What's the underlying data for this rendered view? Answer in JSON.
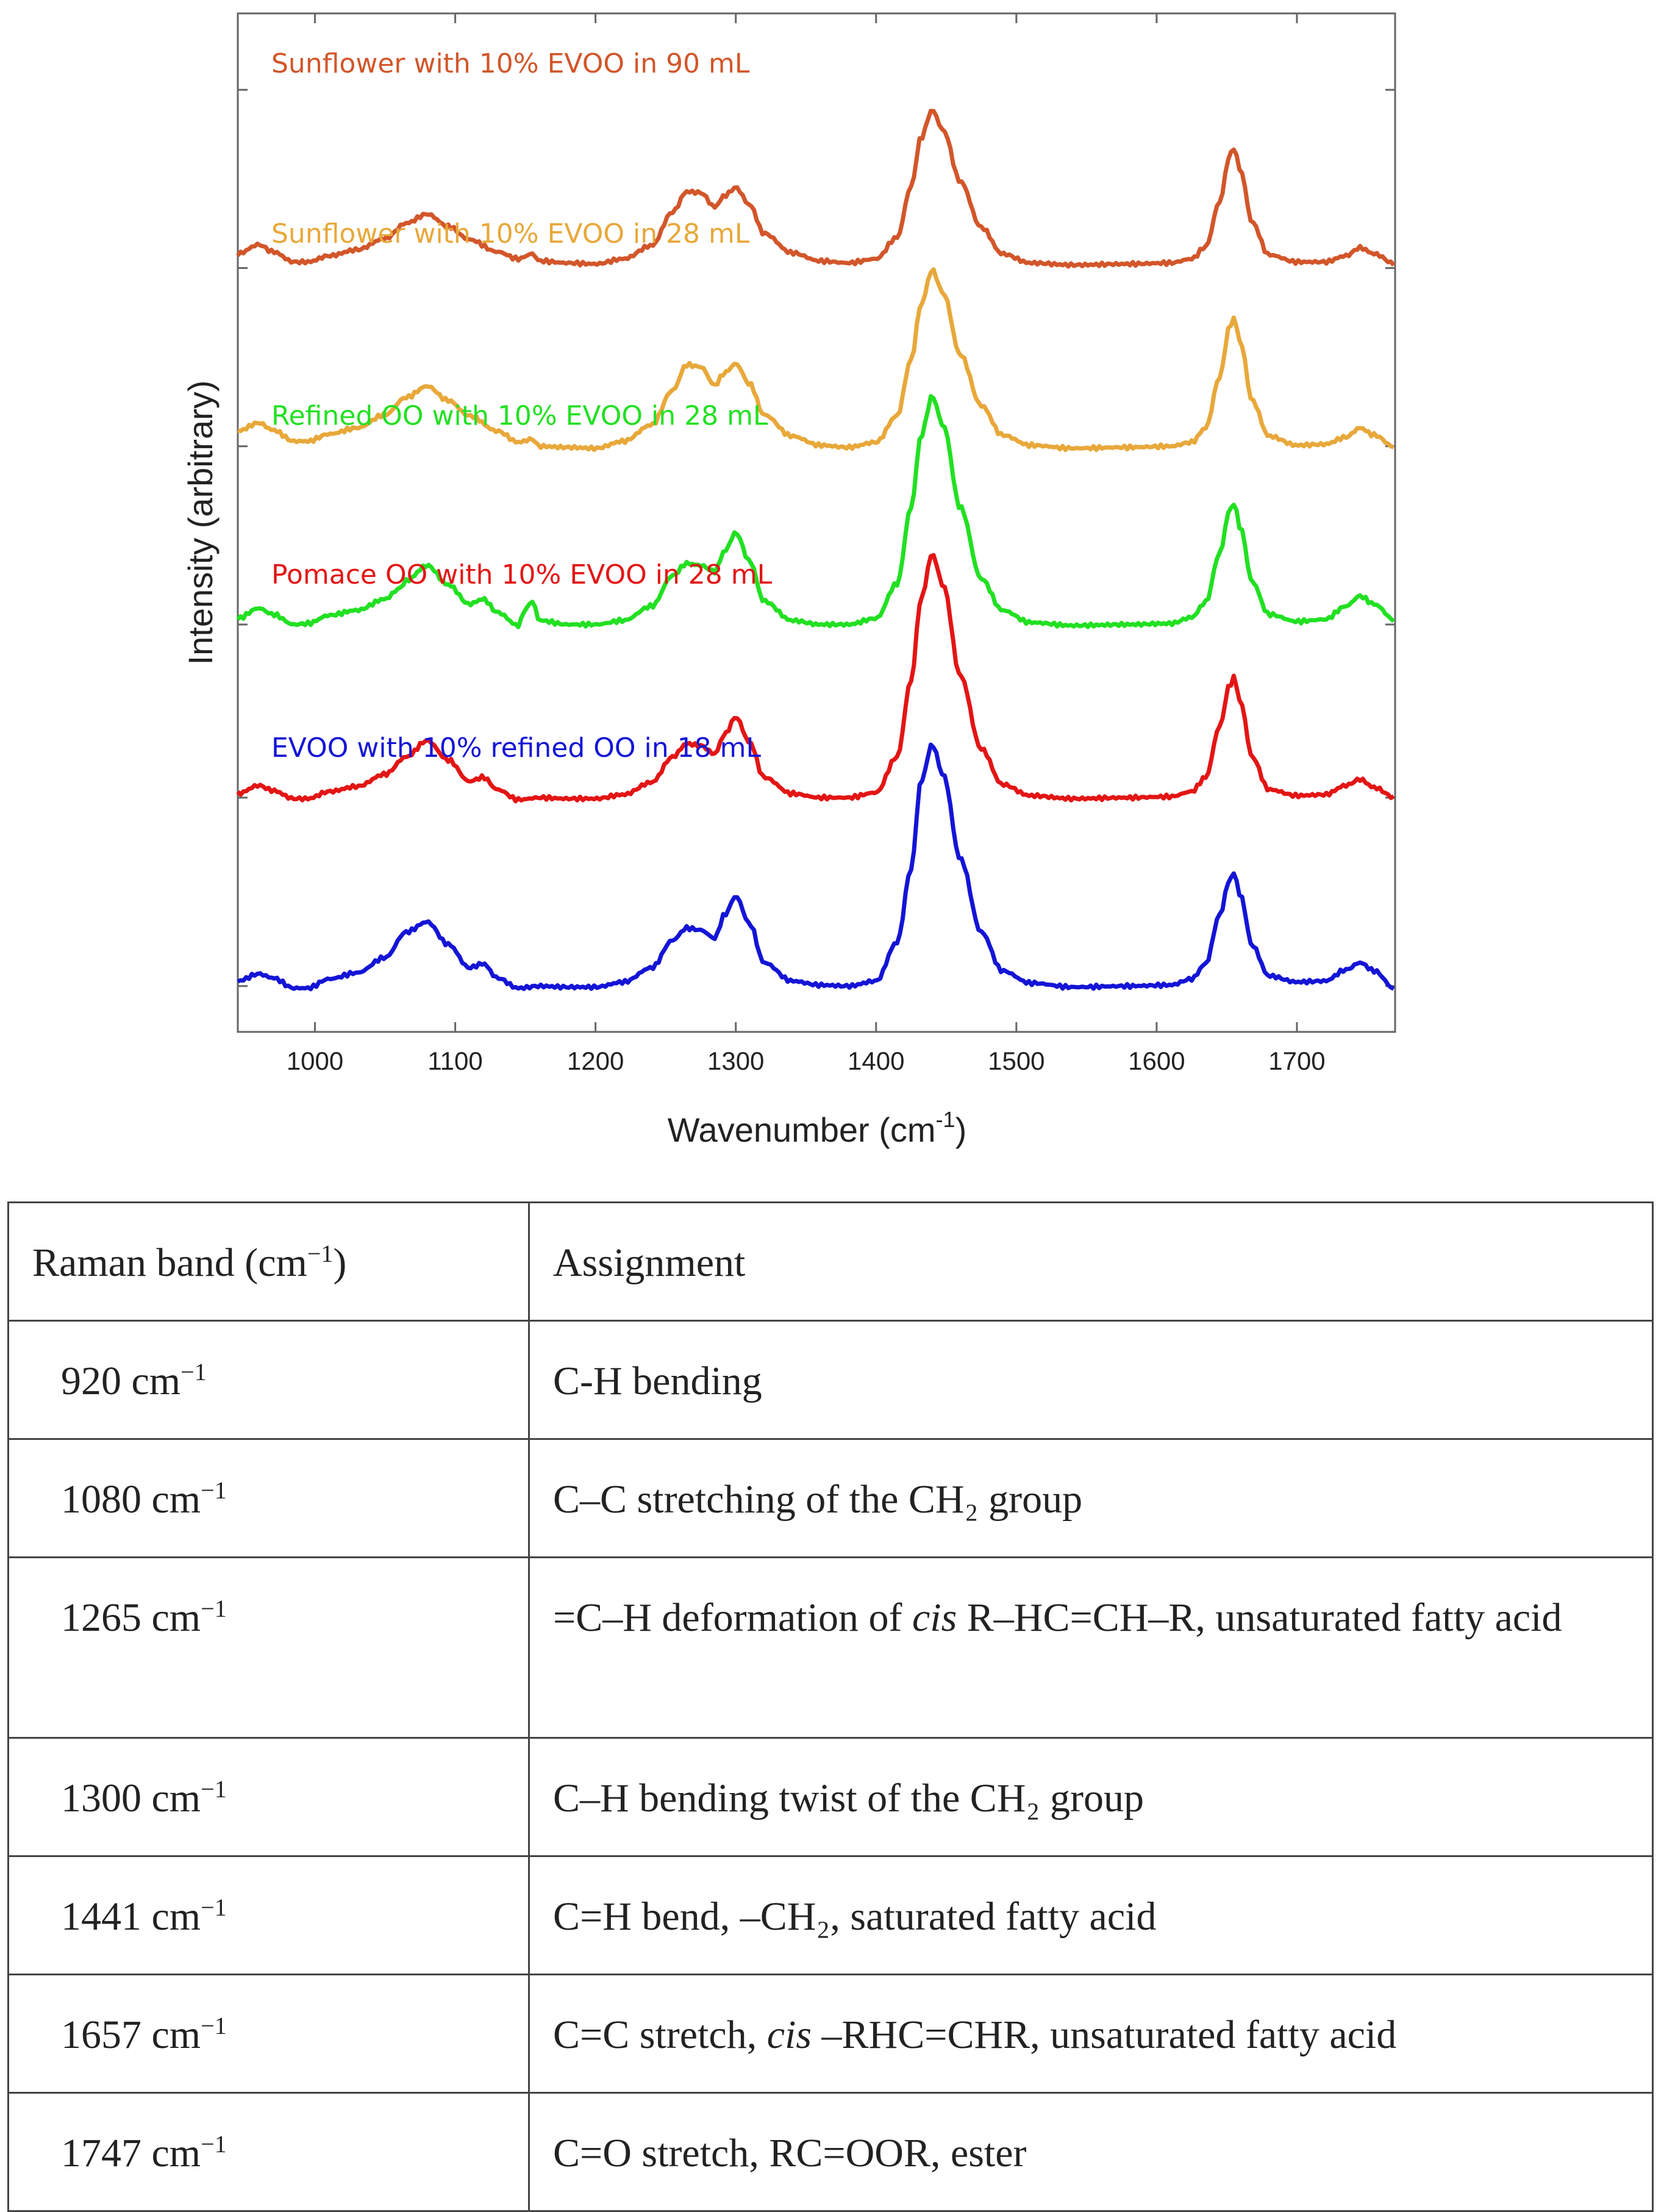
{
  "chart_data": {
    "type": "line",
    "title": "",
    "xlabel": "Wavenumber (cm",
    "xlabel_sup": "-1",
    "xlabel_end": ")",
    "ylabel": "Intensity (arbitrary)",
    "xlim": [
      945,
      1770
    ],
    "ylim": [
      0,
      100
    ],
    "x_ticks": [
      1000,
      1100,
      1200,
      1300,
      1400,
      1500,
      1600,
      1700
    ],
    "x_tick_labels": [
      "1000",
      "1100",
      "1200",
      "1300",
      "1400",
      "1500",
      "1600",
      "1700"
    ],
    "y_ticks": [
      4.5,
      23,
      40,
      57.5,
      75,
      92.5
    ],
    "y_tick_labels": [
      "",
      "",
      "",
      "",
      "",
      ""
    ],
    "series": [
      {
        "name": "Sunflower with 10% EVOO in 90 mL",
        "color": "#D2562A",
        "baseline": 75,
        "pt": [
          [
            945,
            76.4
          ],
          [
            960,
            77.3
          ],
          [
            970,
            76.6
          ],
          [
            985,
            75.6
          ],
          [
            995,
            75.6
          ],
          [
            1010,
            76.2
          ],
          [
            1030,
            76.8
          ],
          [
            1050,
            77.9
          ],
          [
            1065,
            79.4
          ],
          [
            1080,
            80.3
          ],
          [
            1095,
            79.1
          ],
          [
            1110,
            77.8
          ],
          [
            1130,
            76.6
          ],
          [
            1145,
            75.9
          ],
          [
            1155,
            76.4
          ],
          [
            1160,
            75.7
          ],
          [
            1180,
            75.5
          ],
          [
            1200,
            75.4
          ],
          [
            1220,
            75.9
          ],
          [
            1240,
            77.2
          ],
          [
            1255,
            80.5
          ],
          [
            1265,
            82.5
          ],
          [
            1275,
            82.4
          ],
          [
            1285,
            81.0
          ],
          [
            1292,
            82.1
          ],
          [
            1300,
            82.9
          ],
          [
            1310,
            81.2
          ],
          [
            1320,
            78.4
          ],
          [
            1340,
            76.5
          ],
          [
            1360,
            75.7
          ],
          [
            1380,
            75.5
          ],
          [
            1400,
            75.9
          ],
          [
            1415,
            78.0
          ],
          [
            1425,
            83.0
          ],
          [
            1432,
            87.8
          ],
          [
            1440,
            90.5
          ],
          [
            1448,
            88.5
          ],
          [
            1460,
            83.5
          ],
          [
            1475,
            79.0
          ],
          [
            1490,
            76.4
          ],
          [
            1510,
            75.5
          ],
          [
            1540,
            75.3
          ],
          [
            1580,
            75.4
          ],
          [
            1610,
            75.5
          ],
          [
            1625,
            75.9
          ],
          [
            1635,
            77.1
          ],
          [
            1645,
            81.5
          ],
          [
            1652,
            86.0
          ],
          [
            1655,
            86.8
          ],
          [
            1660,
            84.5
          ],
          [
            1668,
            79.5
          ],
          [
            1680,
            76.3
          ],
          [
            1700,
            75.6
          ],
          [
            1720,
            75.6
          ],
          [
            1735,
            76.2
          ],
          [
            1745,
            77.0
          ],
          [
            1755,
            76.4
          ],
          [
            1770,
            75.4
          ]
        ]
      },
      {
        "name": "Sunflower with 10% EVOO in 28 mL",
        "color": "#E8A83A",
        "baseline": 57.5,
        "pt": [
          [
            945,
            59.0
          ],
          [
            960,
            59.8
          ],
          [
            970,
            59.1
          ],
          [
            985,
            58.0
          ],
          [
            995,
            58.0
          ],
          [
            1010,
            58.7
          ],
          [
            1030,
            59.3
          ],
          [
            1050,
            60.6
          ],
          [
            1065,
            62.3
          ],
          [
            1080,
            63.4
          ],
          [
            1095,
            62.0
          ],
          [
            1110,
            60.5
          ],
          [
            1130,
            59.0
          ],
          [
            1145,
            57.9
          ],
          [
            1155,
            58.2
          ],
          [
            1160,
            57.5
          ],
          [
            1180,
            57.4
          ],
          [
            1200,
            57.3
          ],
          [
            1220,
            58.0
          ],
          [
            1240,
            59.6
          ],
          [
            1255,
            63.0
          ],
          [
            1265,
            65.5
          ],
          [
            1275,
            65.3
          ],
          [
            1285,
            63.5
          ],
          [
            1292,
            64.7
          ],
          [
            1300,
            65.6
          ],
          [
            1310,
            63.6
          ],
          [
            1320,
            60.6
          ],
          [
            1340,
            58.5
          ],
          [
            1360,
            57.6
          ],
          [
            1380,
            57.4
          ],
          [
            1400,
            57.9
          ],
          [
            1415,
            60.5
          ],
          [
            1425,
            66.0
          ],
          [
            1432,
            71.4
          ],
          [
            1440,
            74.8
          ],
          [
            1448,
            72.5
          ],
          [
            1460,
            66.5
          ],
          [
            1475,
            61.5
          ],
          [
            1490,
            58.6
          ],
          [
            1510,
            57.6
          ],
          [
            1540,
            57.3
          ],
          [
            1580,
            57.4
          ],
          [
            1610,
            57.5
          ],
          [
            1625,
            57.9
          ],
          [
            1635,
            59.3
          ],
          [
            1645,
            64.3
          ],
          [
            1652,
            69.2
          ],
          [
            1655,
            70.1
          ],
          [
            1660,
            67.6
          ],
          [
            1668,
            62.0
          ],
          [
            1680,
            58.5
          ],
          [
            1700,
            57.6
          ],
          [
            1720,
            57.7
          ],
          [
            1735,
            58.4
          ],
          [
            1745,
            59.3
          ],
          [
            1755,
            58.6
          ],
          [
            1770,
            57.4
          ]
        ]
      },
      {
        "name": "Refined OO with 10% EVOO in 28 mL",
        "color": "#22E022",
        "baseline": 40,
        "pt": [
          [
            945,
            40.6
          ],
          [
            960,
            41.6
          ],
          [
            970,
            41.0
          ],
          [
            985,
            40.0
          ],
          [
            995,
            40.1
          ],
          [
            1010,
            40.9
          ],
          [
            1030,
            41.4
          ],
          [
            1050,
            42.5
          ],
          [
            1060,
            43.5
          ],
          [
            1065,
            44.3
          ],
          [
            1080,
            45.8
          ],
          [
            1095,
            43.9
          ],
          [
            1110,
            42.0
          ],
          [
            1120,
            42.5
          ],
          [
            1130,
            41.2
          ],
          [
            1145,
            39.9
          ],
          [
            1150,
            41.5
          ],
          [
            1155,
            42.3
          ],
          [
            1160,
            40.4
          ],
          [
            1180,
            40.0
          ],
          [
            1200,
            40.0
          ],
          [
            1220,
            40.4
          ],
          [
            1240,
            41.8
          ],
          [
            1255,
            44.8
          ],
          [
            1265,
            46.0
          ],
          [
            1275,
            45.8
          ],
          [
            1285,
            45.2
          ],
          [
            1292,
            47.2
          ],
          [
            1300,
            49.0
          ],
          [
            1310,
            46.2
          ],
          [
            1320,
            42.3
          ],
          [
            1340,
            40.4
          ],
          [
            1360,
            40.0
          ],
          [
            1380,
            40.0
          ],
          [
            1400,
            40.6
          ],
          [
            1415,
            44.0
          ],
          [
            1425,
            51.5
          ],
          [
            1432,
            58.5
          ],
          [
            1440,
            62.4
          ],
          [
            1448,
            59.5
          ],
          [
            1460,
            51.5
          ],
          [
            1475,
            44.5
          ],
          [
            1490,
            41.4
          ],
          [
            1510,
            40.2
          ],
          [
            1540,
            39.9
          ],
          [
            1580,
            40.0
          ],
          [
            1610,
            40.1
          ],
          [
            1625,
            40.7
          ],
          [
            1635,
            42.2
          ],
          [
            1645,
            47.0
          ],
          [
            1652,
            51.2
          ],
          [
            1655,
            51.9
          ],
          [
            1660,
            49.4
          ],
          [
            1668,
            44.2
          ],
          [
            1680,
            41.0
          ],
          [
            1700,
            40.3
          ],
          [
            1720,
            40.5
          ],
          [
            1735,
            41.8
          ],
          [
            1745,
            42.8
          ],
          [
            1755,
            42.0
          ],
          [
            1770,
            40.4
          ]
        ]
      },
      {
        "name": "Pomace OO with 10% EVOO in 28 mL",
        "color": "#E31515",
        "baseline": 23,
        "pt": [
          [
            945,
            23.4
          ],
          [
            960,
            24.2
          ],
          [
            970,
            23.7
          ],
          [
            985,
            22.9
          ],
          [
            995,
            22.9
          ],
          [
            1010,
            23.6
          ],
          [
            1030,
            24.1
          ],
          [
            1050,
            25.3
          ],
          [
            1065,
            27.0
          ],
          [
            1080,
            28.6
          ],
          [
            1095,
            26.7
          ],
          [
            1110,
            24.6
          ],
          [
            1120,
            25.0
          ],
          [
            1130,
            23.8
          ],
          [
            1145,
            22.8
          ],
          [
            1160,
            23.0
          ],
          [
            1180,
            22.9
          ],
          [
            1200,
            22.9
          ],
          [
            1220,
            23.3
          ],
          [
            1240,
            24.5
          ],
          [
            1255,
            27.0
          ],
          [
            1265,
            28.3
          ],
          [
            1275,
            28.1
          ],
          [
            1285,
            27.3
          ],
          [
            1292,
            29.2
          ],
          [
            1300,
            30.9
          ],
          [
            1310,
            28.4
          ],
          [
            1320,
            25.0
          ],
          [
            1340,
            23.4
          ],
          [
            1360,
            23.0
          ],
          [
            1380,
            23.0
          ],
          [
            1400,
            23.5
          ],
          [
            1415,
            27.0
          ],
          [
            1425,
            34.5
          ],
          [
            1432,
            42.5
          ],
          [
            1440,
            46.9
          ],
          [
            1448,
            43.8
          ],
          [
            1460,
            35.0
          ],
          [
            1475,
            27.8
          ],
          [
            1490,
            24.3
          ],
          [
            1510,
            23.2
          ],
          [
            1540,
            22.9
          ],
          [
            1580,
            23.0
          ],
          [
            1610,
            23.1
          ],
          [
            1625,
            23.6
          ],
          [
            1635,
            25.0
          ],
          [
            1645,
            30.0
          ],
          [
            1652,
            34.0
          ],
          [
            1655,
            34.8
          ],
          [
            1660,
            32.3
          ],
          [
            1668,
            27.0
          ],
          [
            1680,
            23.8
          ],
          [
            1700,
            23.2
          ],
          [
            1720,
            23.3
          ],
          [
            1735,
            24.2
          ],
          [
            1745,
            24.8
          ],
          [
            1755,
            24.0
          ],
          [
            1770,
            23.0
          ]
        ]
      },
      {
        "name": "EVOO with 10% refined OO in 18 mL",
        "color": "#1414D6",
        "baseline": 4.5,
        "pt": [
          [
            945,
            5.0
          ],
          [
            960,
            5.7
          ],
          [
            970,
            5.3
          ],
          [
            985,
            4.3
          ],
          [
            995,
            4.3
          ],
          [
            1010,
            5.2
          ],
          [
            1030,
            5.8
          ],
          [
            1050,
            7.3
          ],
          [
            1065,
            9.8
          ],
          [
            1080,
            10.8
          ],
          [
            1095,
            8.6
          ],
          [
            1110,
            6.3
          ],
          [
            1120,
            6.7
          ],
          [
            1130,
            5.3
          ],
          [
            1145,
            4.3
          ],
          [
            1160,
            4.5
          ],
          [
            1180,
            4.4
          ],
          [
            1200,
            4.4
          ],
          [
            1220,
            4.9
          ],
          [
            1240,
            6.3
          ],
          [
            1255,
            9.0
          ],
          [
            1265,
            10.2
          ],
          [
            1275,
            10.0
          ],
          [
            1285,
            9.2
          ],
          [
            1292,
            11.5
          ],
          [
            1300,
            13.3
          ],
          [
            1310,
            10.6
          ],
          [
            1320,
            6.8
          ],
          [
            1340,
            5.0
          ],
          [
            1360,
            4.6
          ],
          [
            1380,
            4.5
          ],
          [
            1400,
            5.0
          ],
          [
            1415,
            8.8
          ],
          [
            1425,
            16.0
          ],
          [
            1432,
            24.6
          ],
          [
            1440,
            28.2
          ],
          [
            1448,
            25.2
          ],
          [
            1460,
            17.0
          ],
          [
            1475,
            9.8
          ],
          [
            1490,
            6.0
          ],
          [
            1510,
            4.8
          ],
          [
            1540,
            4.4
          ],
          [
            1580,
            4.5
          ],
          [
            1610,
            4.6
          ],
          [
            1625,
            5.2
          ],
          [
            1635,
            6.7
          ],
          [
            1645,
            11.5
          ],
          [
            1652,
            14.9
          ],
          [
            1655,
            15.6
          ],
          [
            1660,
            13.3
          ],
          [
            1668,
            8.5
          ],
          [
            1680,
            5.5
          ],
          [
            1700,
            4.9
          ],
          [
            1720,
            5.0
          ],
          [
            1735,
            6.1
          ],
          [
            1745,
            6.8
          ],
          [
            1755,
            6.0
          ],
          [
            1770,
            4.2
          ]
        ]
      }
    ]
  },
  "table": {
    "header": {
      "band_pre": "Raman band (cm",
      "band_sup": "−1",
      "band_post": ")",
      "assignment": "Assignment"
    },
    "unit": " cm",
    "unit_sup": "−1",
    "rows": [
      {
        "band": "920",
        "assignment": "C-H bending"
      },
      {
        "band": "1080",
        "assignment": "C–C stretching of the CH₂ group"
      },
      {
        "band": "1265",
        "a_pre": "=C–H deformation of ",
        "a_it": "cis",
        "a_post": " R–HC=CH–R, unsaturated fatty acid"
      },
      {
        "band": "1300",
        "assignment": "C–H bending twist of the CH₂ group"
      },
      {
        "band": "1441",
        "assignment": "C=H bend, –CH₂, saturated fatty acid"
      },
      {
        "band": "1657",
        "a_pre": "C=C stretch, ",
        "a_it": "cis",
        "a_post": " –RHC=CHR, unsaturated fatty acid"
      },
      {
        "band": "1747",
        "assignment": "C=O stretch, RC=OOR, ester"
      }
    ]
  }
}
